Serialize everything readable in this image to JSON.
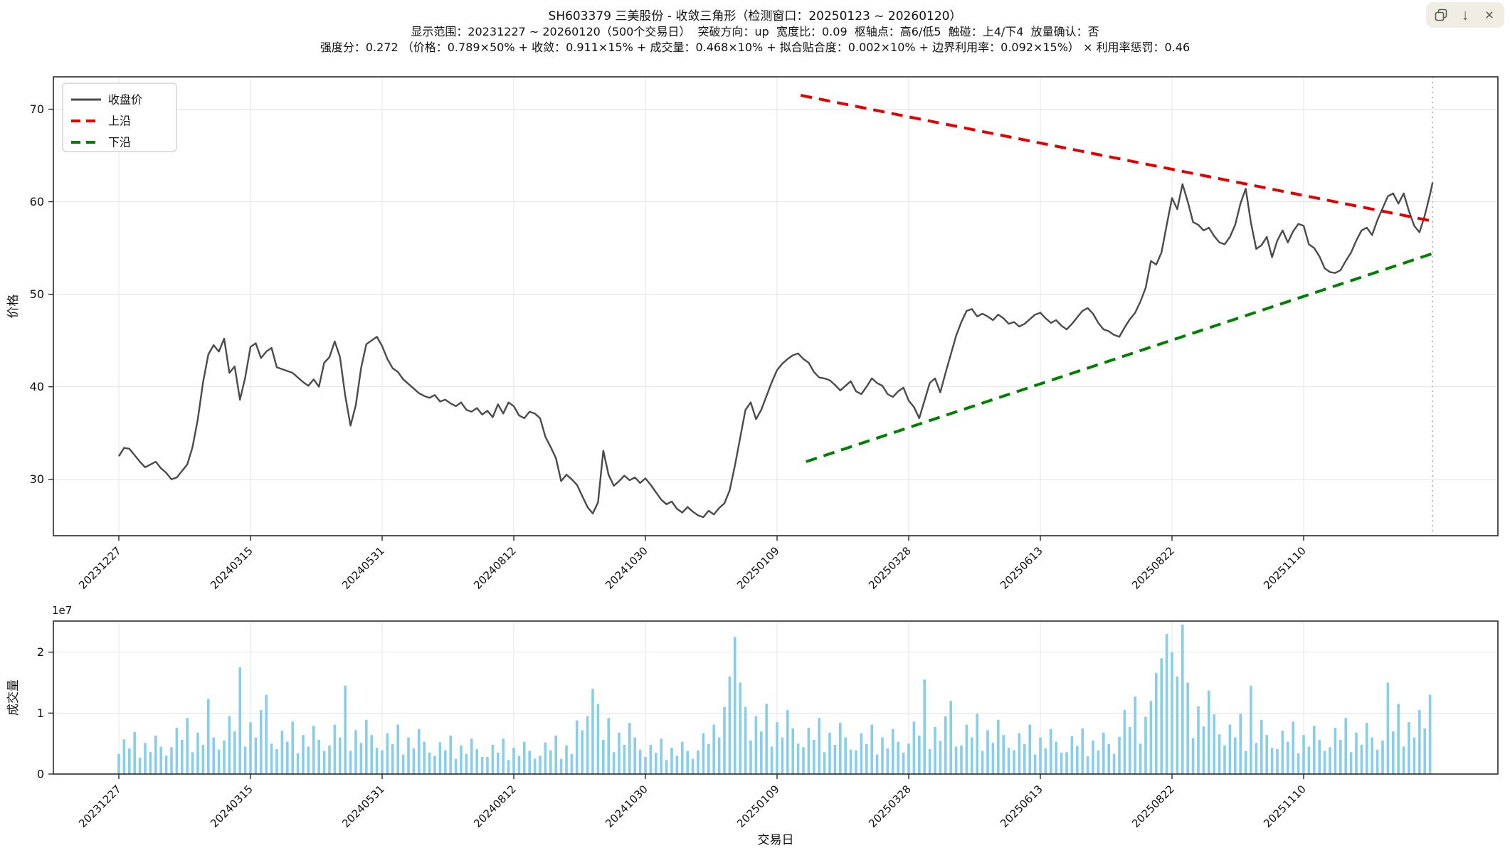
{
  "titles": {
    "line1": "SH603379 三美股份 - 收敛三角形（检测窗口：20250123 ~ 20260120）",
    "line2": "显示范围：20231227 ~ 20260120（500个交易日）  突破方向：up  宽度比：0.09  枢轴点：高6/低5  触碰：上4/下4  放量确认：否",
    "line3": "强度分：0.272 （价格：0.789×50% + 收敛：0.911×15% + 成交量：0.468×10% + 拟合贴合度：0.002×10% + 边界利用率：0.092×15%） × 利用率惩罚：0.46"
  },
  "toolbar": {
    "background": "#f0eee3",
    "buttons": [
      {
        "name": "copy"
      },
      {
        "name": "download",
        "glyph": "↓"
      },
      {
        "name": "close",
        "glyph": "×"
      }
    ]
  },
  "chart_data": [
    {
      "type": "line",
      "name": "price-panel",
      "ylabel": "价格",
      "yticks": [
        30,
        40,
        50,
        60,
        70
      ],
      "ylim": [
        23.9,
        73.5
      ],
      "xlim_days": [
        -25,
        524
      ],
      "grid": true,
      "legend_position": "upper-left",
      "legend": [
        {
          "label": "收盘价",
          "color": "#4b4b4b",
          "style": "solid"
        },
        {
          "label": "上沿",
          "color": "#e50000",
          "style": "dashed"
        },
        {
          "label": "下沿",
          "color": "#008000",
          "style": "dashed"
        }
      ],
      "xtick_days": [
        0,
        50,
        100,
        150,
        200,
        250,
        300,
        350,
        400,
        450
      ],
      "xtick_labels": [
        "20231227",
        "20240315",
        "20240531",
        "20240812",
        "20241030",
        "20250109",
        "20250328",
        "20250613",
        "20250822",
        "20251110"
      ],
      "series": {
        "close": {
          "name": "收盘价",
          "color": "#4b4b4b",
          "day_step": 2,
          "last_day": 499,
          "values": [
            32.5,
            33.4,
            33.3,
            32.6,
            31.9,
            31.3,
            31.6,
            31.9,
            31.2,
            30.7,
            30.0,
            30.2,
            30.9,
            31.6,
            33.5,
            36.5,
            40.5,
            43.5,
            44.5,
            43.8,
            45.2,
            41.5,
            42.2,
            38.6,
            41.0,
            44.3,
            44.7,
            43.1,
            43.8,
            44.2,
            42.1,
            41.9,
            41.7,
            41.5,
            41.0,
            40.5,
            40.1,
            40.8,
            40.0,
            42.6,
            43.2,
            44.9,
            43.2,
            39.0,
            35.8,
            38.0,
            42.0,
            44.6,
            45.0,
            45.4,
            44.4,
            43.0,
            42.0,
            41.6,
            40.8,
            40.3,
            39.8,
            39.3,
            39.0,
            38.8,
            39.1,
            38.4,
            38.6,
            38.2,
            37.9,
            38.3,
            37.5,
            37.3,
            37.7,
            37.0,
            37.4,
            36.7,
            38.1,
            37.1,
            38.3,
            37.9,
            36.9,
            36.6,
            37.3,
            37.1,
            36.6,
            34.6,
            33.5,
            32.3,
            29.8,
            30.5,
            30.0,
            29.4,
            28.2,
            27.0,
            26.3,
            27.5,
            33.1,
            30.5,
            29.3,
            29.8,
            30.4,
            29.9,
            30.2,
            29.6,
            30.1,
            29.4,
            28.6,
            27.8,
            27.3,
            27.6,
            26.8,
            26.4,
            27.0,
            26.5,
            26.1,
            25.9,
            26.6,
            26.2,
            26.9,
            27.4,
            28.8,
            31.5,
            34.5,
            37.5,
            38.3,
            36.5,
            37.5,
            39.0,
            40.5,
            41.8,
            42.5,
            43.0,
            43.4,
            43.6,
            43.0,
            42.6,
            41.6,
            41.0,
            40.9,
            40.7,
            40.2,
            39.6,
            40.1,
            40.6,
            39.5,
            39.2,
            40.0,
            40.9,
            40.4,
            40.1,
            39.2,
            38.9,
            39.5,
            39.9,
            38.5,
            37.8,
            36.6,
            38.5,
            40.4,
            40.9,
            39.4,
            41.5,
            43.5,
            45.5,
            47.0,
            48.2,
            48.4,
            47.6,
            47.9,
            47.6,
            47.2,
            47.8,
            47.4,
            46.8,
            47.0,
            46.5,
            46.8,
            47.3,
            47.8,
            48.0,
            47.4,
            46.9,
            47.2,
            46.6,
            46.2,
            46.8,
            47.5,
            48.2,
            48.5,
            47.9,
            46.9,
            46.2,
            46.0,
            45.6,
            45.4,
            46.4,
            47.3,
            48.0,
            49.2,
            50.7,
            53.6,
            53.2,
            54.5,
            57.5,
            60.4,
            59.2,
            61.9,
            60.0,
            57.8,
            57.5,
            56.9,
            57.2,
            56.3,
            55.6,
            55.4,
            56.2,
            57.5,
            59.8,
            61.4,
            57.7,
            54.9,
            55.3,
            56.2,
            54.0,
            55.8,
            56.9,
            55.6,
            56.8,
            57.6,
            57.4,
            55.4,
            55.0,
            54.1,
            52.8,
            52.4,
            52.3,
            52.6,
            53.6,
            54.5,
            55.8,
            56.9,
            57.2,
            56.4,
            58.0,
            59.3,
            60.6,
            60.9,
            59.8,
            60.9,
            59.0,
            57.4,
            56.7,
            58.5,
            60.8,
            62.1
          ]
        },
        "upper_line": {
          "name": "上沿",
          "color": "#e50000",
          "x_days": [
            259,
            499
          ],
          "y": [
            71.5,
            57.9
          ]
        },
        "lower_line": {
          "name": "下沿",
          "color": "#008000",
          "x_days": [
            261,
            499
          ],
          "y": [
            31.9,
            54.4
          ]
        },
        "marker_day": 499
      }
    },
    {
      "type": "bar",
      "name": "volume-panel",
      "ylabel": "成交量",
      "xlabel": "交易日",
      "offset_text": "1e7",
      "yticks": [
        0,
        1,
        2
      ],
      "ylim": [
        0,
        2.51
      ],
      "bar_color": "#87ceeb",
      "grid": true,
      "xtick_days": [
        0,
        50,
        100,
        150,
        200,
        250,
        300,
        350,
        400,
        450
      ],
      "xtick_labels": [
        "20231227",
        "20240315",
        "20240531",
        "20240812",
        "20241030",
        "20250109",
        "20250328",
        "20250613",
        "20250822",
        "20251110"
      ],
      "day_step": 2,
      "values_e7": [
        0.33,
        0.57,
        0.42,
        0.69,
        0.27,
        0.51,
        0.36,
        0.63,
        0.45,
        0.3,
        0.44,
        0.76,
        0.56,
        0.92,
        0.36,
        0.68,
        0.48,
        1.23,
        0.6,
        0.4,
        0.55,
        0.95,
        0.7,
        1.75,
        0.45,
        0.85,
        0.6,
        1.05,
        1.3,
        0.5,
        0.41,
        0.71,
        0.53,
        0.86,
        0.34,
        0.64,
        0.45,
        0.79,
        0.56,
        0.38,
        0.47,
        0.81,
        0.6,
        1.45,
        0.38,
        0.72,
        0.51,
        0.89,
        0.64,
        0.43,
        0.39,
        0.67,
        0.49,
        0.81,
        0.32,
        0.6,
        0.42,
        0.74,
        0.53,
        0.35,
        0.3,
        0.52,
        0.39,
        0.63,
        0.25,
        0.47,
        0.33,
        0.58,
        0.41,
        0.28,
        0.28,
        0.48,
        0.35,
        0.58,
        0.23,
        0.43,
        0.3,
        0.53,
        0.38,
        0.25,
        0.3,
        0.52,
        0.39,
        0.63,
        0.25,
        0.47,
        0.33,
        0.88,
        0.72,
        0.95,
        1.4,
        1.15,
        0.56,
        0.92,
        0.36,
        0.68,
        0.48,
        0.84,
        0.6,
        0.4,
        0.28,
        0.48,
        0.35,
        0.58,
        0.23,
        0.43,
        0.3,
        0.53,
        0.38,
        0.25,
        0.39,
        0.67,
        0.49,
        0.81,
        0.6,
        1.1,
        1.6,
        2.25,
        1.5,
        1.1,
        0.55,
        0.95,
        0.7,
        1.15,
        0.45,
        0.85,
        0.6,
        1.05,
        0.75,
        0.5,
        0.44,
        0.76,
        0.56,
        0.92,
        0.36,
        0.68,
        0.48,
        0.84,
        0.6,
        0.4,
        0.39,
        0.67,
        0.49,
        0.81,
        0.32,
        0.6,
        0.42,
        0.74,
        0.53,
        0.35,
        0.5,
        0.86,
        0.63,
        1.55,
        0.41,
        0.77,
        0.54,
        0.95,
        1.2,
        0.45,
        0.47,
        0.81,
        0.6,
        0.99,
        0.38,
        0.72,
        0.51,
        0.89,
        0.64,
        0.43,
        0.39,
        0.67,
        0.49,
        0.81,
        0.32,
        0.6,
        0.42,
        0.74,
        0.53,
        0.35,
        0.36,
        0.62,
        0.46,
        0.75,
        0.29,
        0.55,
        0.39,
        0.68,
        0.49,
        0.33,
        0.61,
        1.05,
        0.77,
        1.27,
        0.5,
        0.94,
        1.2,
        1.66,
        1.9,
        2.3,
        2.0,
        1.6,
        2.45,
        1.5,
        0.59,
        1.11,
        0.78,
        1.37,
        0.98,
        0.65,
        0.47,
        0.81,
        0.6,
        0.99,
        0.38,
        1.45,
        0.51,
        0.89,
        0.64,
        0.43,
        0.41,
        0.71,
        0.53,
        0.86,
        0.34,
        0.64,
        0.45,
        0.79,
        0.56,
        0.38,
        0.44,
        0.76,
        0.56,
        0.92,
        0.36,
        0.68,
        0.48,
        0.84,
        0.6,
        0.4,
        0.55,
        1.5,
        0.7,
        1.15,
        0.45,
        0.85,
        0.6,
        1.05,
        0.75,
        1.3
      ]
    }
  ]
}
